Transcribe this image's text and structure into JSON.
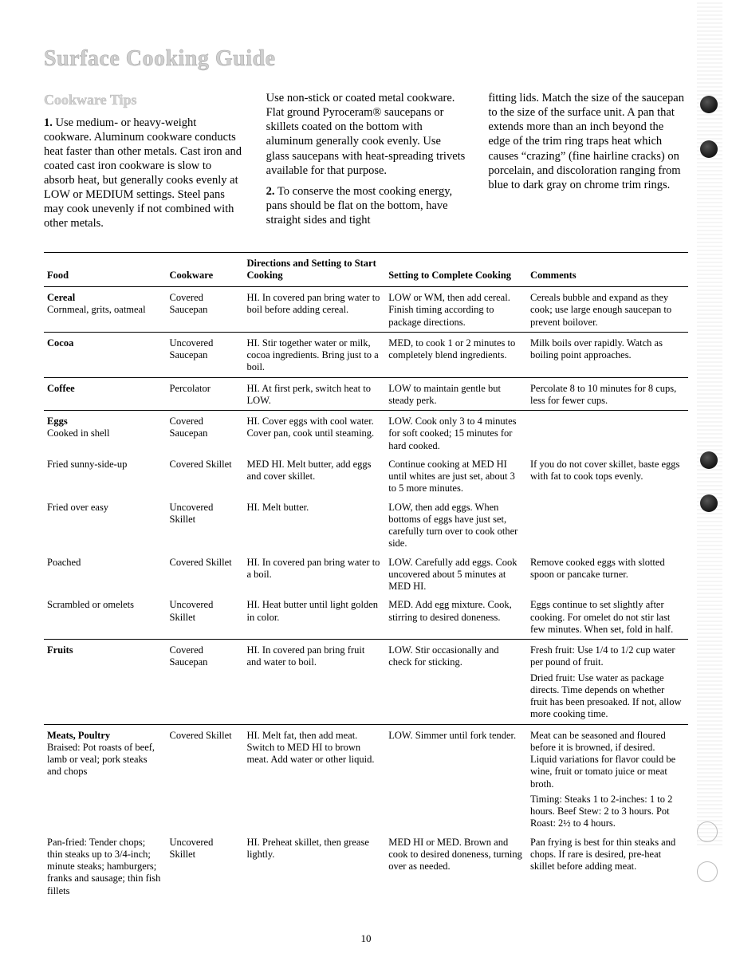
{
  "page": {
    "title": "Surface Cooking Guide",
    "subtitle": "Cookware Tips",
    "number": "10",
    "col1_para1_lead": "1.",
    "col1_para1": " Use medium- or heavy-weight cookware. Aluminum cookware conducts heat faster than other metals. Cast iron and coated cast iron cookware is slow to absorb heat, but generally cooks evenly at LOW or MEDIUM settings. Steel pans may cook unevenly if not combined with other metals.",
    "col2_para1": "Use non-stick or coated metal cookware. Flat ground Pyroceram® saucepans or skillets coated on the bottom with aluminum generally cook evenly. Use glass saucepans with heat-spreading trivets available for that purpose.",
    "col2_para2_lead": "2.",
    "col2_para2": " To conserve the most cooking energy, pans should be flat on the bottom, have straight sides and tight",
    "col3_para1": "fitting lids. Match the size of the saucepan to the size of the surface unit. A pan that extends more than an inch beyond the edge of the trim ring traps heat which causes “crazing” (fine hairline cracks) on porcelain, and discoloration ranging from blue to dark gray on chrome trim rings."
  },
  "table": {
    "headers": {
      "food": "Food",
      "cookware": "Cookware",
      "start": "Directions and Setting to Start Cooking",
      "complete": "Setting to Complete Cooking",
      "comments": "Comments"
    },
    "rows": [
      {
        "section_start": true,
        "food_head": "Cereal",
        "food": "Cornmeal, grits, oatmeal",
        "cookware": "Covered Saucepan",
        "start": "HI. In covered pan bring water to boil before adding cereal.",
        "complete": "LOW or WM, then add cereal. Finish timing according to package directions.",
        "comments": "Cereals bubble and expand as they cook; use large enough saucepan to prevent boilover."
      },
      {
        "section_start": true,
        "food_head": "Cocoa",
        "food": "",
        "cookware": "Uncovered Saucepan",
        "start": "HI. Stir together water or milk, cocoa ingredients. Bring just to a boil.",
        "complete": "MED, to cook 1 or 2 minutes to completely blend ingredients.",
        "comments": "Milk boils over rapidly. Watch as boiling point approaches."
      },
      {
        "section_start": true,
        "food_head": "Coffee",
        "food": "",
        "cookware": "Percolator",
        "start": "HI. At first perk, switch heat to LOW.",
        "complete": "LOW to maintain gentle but steady perk.",
        "comments": "Percolate 8 to 10 minutes for 8 cups, less for fewer cups."
      },
      {
        "section_start": true,
        "food_head": "Eggs",
        "food": "Cooked in shell",
        "cookware": "Covered Saucepan",
        "start": "HI. Cover eggs with cool water. Cover pan, cook until steaming.",
        "complete": "LOW. Cook only 3 to 4 minutes for soft cooked; 15 minutes for hard cooked.",
        "comments": ""
      },
      {
        "food": "Fried sunny-side-up",
        "cookware": "Covered Skillet",
        "start": "MED HI. Melt butter, add eggs and cover skillet.",
        "complete": "Continue cooking at MED HI until whites are just set, about 3 to 5 more minutes.",
        "comments": "If you do not cover skillet, baste eggs with fat to cook tops evenly."
      },
      {
        "food": "Fried over easy",
        "cookware": "Uncovered Skillet",
        "start": "HI. Melt butter.",
        "complete": "LOW, then add eggs. When bottoms of eggs have just set, carefully turn over to cook other side.",
        "comments": ""
      },
      {
        "food": "Poached",
        "cookware": "Covered Skillet",
        "start": "HI. In covered pan bring water to a boil.",
        "complete": "LOW. Carefully add eggs. Cook uncovered about 5 minutes at MED HI.",
        "comments": "Remove cooked eggs with slotted spoon or pancake turner."
      },
      {
        "food": "Scrambled or omelets",
        "cookware": "Uncovered Skillet",
        "start": "HI. Heat butter until light golden in color.",
        "complete": "MED. Add egg mixture. Cook, stirring to desired doneness.",
        "comments": "Eggs continue to set slightly after cooking. For omelet do not stir last few minutes. When set, fold in half."
      },
      {
        "section_start": true,
        "food_head": "Fruits",
        "food": "",
        "cookware": "Covered Saucepan",
        "start": "HI. In covered pan bring fruit and water to boil.",
        "complete": "LOW. Stir occasionally and check for sticking.",
        "comments": "Fresh fruit: Use 1/4 to 1/2 cup water per pound of fruit.\nDried fruit: Use water as package directs. Time depends on whether fruit has been presoaked. If not, allow more cooking time."
      },
      {
        "section_start": true,
        "food_head": "Meats, Poultry",
        "food": "Braised: Pot roasts of beef, lamb or veal; pork steaks and chops",
        "cookware": "Covered Skillet",
        "start": "HI. Melt fat, then add meat. Switch to MED HI to brown meat. Add water or other liquid.",
        "complete": "LOW. Simmer until fork tender.",
        "comments": "Meat can be seasoned and floured before it is browned, if desired. Liquid variations for flavor could be wine, fruit or tomato juice or meat broth.\nTiming: Steaks 1 to 2-inches: 1 to 2 hours. Beef Stew: 2 to 3 hours. Pot Roast: 2½ to 4 hours."
      },
      {
        "food": "Pan-fried: Tender chops; thin steaks up to 3/4-inch; minute steaks; hamburgers; franks and sausage; thin fish fillets",
        "cookware": "Uncovered Skillet",
        "start": "HI. Preheat skillet, then grease lightly.",
        "complete": "MED HI or MED. Brown and cook to desired doneness, turning over as needed.",
        "comments": "Pan frying is best for thin steaks and chops. If rare is desired, pre-heat skillet before adding meat."
      }
    ]
  }
}
